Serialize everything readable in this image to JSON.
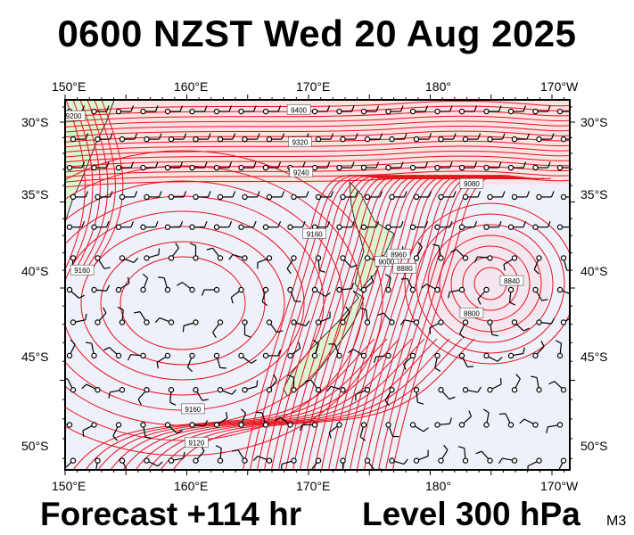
{
  "header": {
    "title": "0600 NZST Wed 20 Aug 2025"
  },
  "footer": {
    "forecast": "Forecast +114 hr",
    "level": "Level 300 hPa",
    "model": "M3"
  },
  "axes": {
    "lon_labels": [
      "150°E",
      "160°E",
      "170°E",
      "180°",
      "170°W"
    ],
    "lat_labels": [
      "30°S",
      "35°S",
      "40°S",
      "45°S",
      "50°S"
    ]
  },
  "contour_labels": [
    {
      "text": "9400",
      "lon": 169.2,
      "lat": -29.2
    },
    {
      "text": "9320",
      "lon": 169.3,
      "lat": -31.3
    },
    {
      "text": "9240",
      "lon": 169.4,
      "lat": -33.2
    },
    {
      "text": "9200",
      "lon": 150.7,
      "lat": -29.6
    },
    {
      "text": "9160",
      "lon": 151.4,
      "lat": -39.0
    },
    {
      "text": "9160",
      "lon": 170.5,
      "lat": -36.9
    },
    {
      "text": "9160",
      "lon": 160.5,
      "lat": -46.5
    },
    {
      "text": "9120",
      "lon": 160.8,
      "lat": -48.2
    },
    {
      "text": "9080",
      "lon": 183.4,
      "lat": -33.9
    },
    {
      "text": "9000",
      "lon": 176.4,
      "lat": -38.5
    },
    {
      "text": "8960",
      "lon": 177.4,
      "lat": -38.1
    },
    {
      "text": "8880",
      "lon": 177.9,
      "lat": -38.9
    },
    {
      "text": "8800",
      "lon": 183.4,
      "lat": -41.4
    },
    {
      "text": "8840",
      "lon": 186.7,
      "lat": -39.6
    }
  ],
  "colors": {
    "contour": "#e8101c",
    "contour_dense_fill": "#fcdcdc",
    "low_area_fill": "#eef0fa",
    "land": "#dcf5d2",
    "frame": "#000000"
  }
}
